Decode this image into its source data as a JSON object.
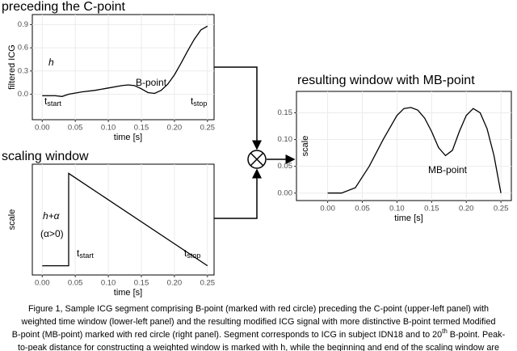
{
  "chart_data": [
    {
      "type": "line",
      "title": "preceding the C-point",
      "x_label": "time [s]",
      "y_label": "filtered ICG",
      "x": [
        0,
        0.02,
        0.03,
        0.04,
        0.06,
        0.08,
        0.1,
        0.12,
        0.13,
        0.14,
        0.15,
        0.16,
        0.17,
        0.18,
        0.19,
        0.2,
        0.21,
        0.22,
        0.23,
        0.24,
        0.25
      ],
      "values": [
        -0.02,
        -0.02,
        -0.03,
        0.0,
        0.03,
        0.05,
        0.08,
        0.11,
        0.12,
        0.11,
        0.07,
        0.02,
        0.01,
        0.05,
        0.13,
        0.25,
        0.4,
        0.56,
        0.71,
        0.83,
        0.88
      ],
      "color": "#000000",
      "xlim": [
        -0.015,
        0.26
      ],
      "xticks": [
        {
          "value": 0,
          "label": "0.00"
        },
        {
          "value": 0.05,
          "label": "0.05"
        },
        {
          "value": 0.1,
          "label": "0.10"
        },
        {
          "value": 0.15,
          "label": "0.15"
        },
        {
          "value": 0.2,
          "label": "0.20"
        },
        {
          "value": 0.25,
          "label": "0.25"
        }
      ],
      "ylim": [
        -0.33,
        1.03
      ],
      "yticks": [
        {
          "value": 0,
          "label": "0.0"
        },
        0.3,
        0.6,
        0.9
      ],
      "grid": true,
      "annotations": [
        {
          "text": "h"
        },
        {
          "text": "t",
          "sub": "start"
        },
        {
          "text": "B-point"
        },
        {
          "text": "t",
          "sub": "stop"
        }
      ]
    },
    {
      "type": "line",
      "title": "scaling window",
      "x_label": "time [s]",
      "y_label": "scale",
      "x": [
        0,
        0.04,
        0.04,
        0.25
      ],
      "values": [
        0,
        0,
        1,
        0
      ],
      "color": "#000000",
      "xlim": [
        -0.015,
        0.26
      ],
      "xticks": [
        {
          "value": 0,
          "label": "0.00"
        },
        {
          "value": 0.05,
          "label": "0.05"
        },
        {
          "value": 0.1,
          "label": "0.10"
        },
        {
          "value": 0.15,
          "label": "0.15"
        },
        {
          "value": 0.2,
          "label": "0.20"
        },
        {
          "value": 0.25,
          "label": "0.25"
        }
      ],
      "ylim": [
        -0.1,
        1.1
      ],
      "yticks": [],
      "grid": true,
      "annotations": [
        {
          "text": "h+α"
        },
        {
          "text": "(α>0)"
        },
        {
          "text": "t",
          "sub": "start"
        },
        {
          "text": "t",
          "sub": "stop"
        }
      ]
    },
    {
      "type": "line",
      "title": "resulting window with MB-point",
      "x_label": "time [s]",
      "y_label": "scale",
      "x": [
        0,
        0.02,
        0.04,
        0.06,
        0.08,
        0.1,
        0.11,
        0.12,
        0.13,
        0.14,
        0.15,
        0.16,
        0.17,
        0.18,
        0.19,
        0.2,
        0.21,
        0.22,
        0.23,
        0.24,
        0.25
      ],
      "values": [
        0.0,
        0.0,
        0.01,
        0.05,
        0.1,
        0.145,
        0.158,
        0.16,
        0.155,
        0.14,
        0.115,
        0.085,
        0.07,
        0.08,
        0.115,
        0.145,
        0.158,
        0.15,
        0.12,
        0.07,
        0.0
      ],
      "color": "#000000",
      "xlim": [
        -0.045,
        0.265
      ],
      "xticks": [
        {
          "value": 0,
          "label": "0.00"
        },
        {
          "value": 0.05,
          "label": "0.05"
        },
        {
          "value": 0.1,
          "label": "0.10"
        },
        {
          "value": 0.15,
          "label": "0.15"
        },
        {
          "value": 0.2,
          "label": "0.20"
        },
        {
          "value": 0.25,
          "label": "0.25"
        }
      ],
      "ylim": [
        -0.014,
        0.19
      ],
      "yticks": [
        {
          "value": 0,
          "label": "0.00"
        },
        0.05,
        {
          "value": 0.1,
          "label": "0.10"
        },
        0.15
      ],
      "grid": true,
      "annotations": [
        {
          "text": "MB-point"
        }
      ]
    }
  ],
  "caption": [
    {
      "text": "Figure 1, Sample ICG segment comprising B-point (marked with red circle) preceding the C-point (upper-left panel) with"
    },
    {
      "text": "weighted time window (lower-left panel) and the resulting modified ICG signal with more distinctive B-point termed Modified"
    },
    {
      "text": "B-point (MB-point) marked with red circle (right panel). Segment corresponds to ICG in subject IDN18 and to 20",
      "sup": "th",
      "tail": " B-point. Peak-"
    },
    {
      "text": "to-peak distance for constructing a weighted window is marked with h, while the beginning and end of the scaling window are"
    }
  ]
}
